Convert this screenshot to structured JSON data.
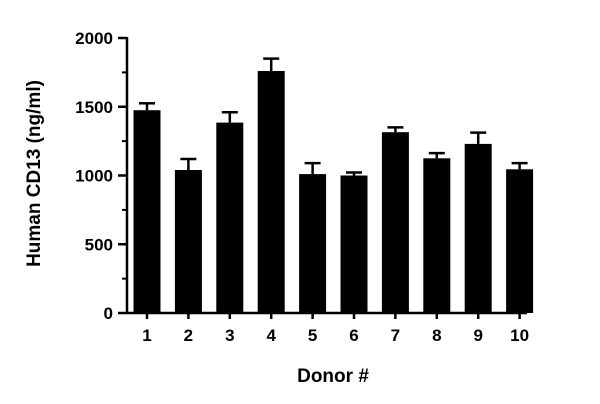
{
  "chart_data": {
    "type": "bar",
    "title": "",
    "xlabel": "Donor #",
    "ylabel": "Human CD13 (ng/ml)",
    "categories": [
      "1",
      "2",
      "3",
      "4",
      "5",
      "6",
      "7",
      "8",
      "9",
      "10"
    ],
    "values": [
      1475,
      1040,
      1385,
      1760,
      1010,
      1000,
      1315,
      1125,
      1230,
      1045
    ],
    "error": [
      50,
      80,
      75,
      90,
      80,
      22,
      35,
      38,
      82,
      45
    ],
    "ylim": [
      0,
      2000
    ],
    "yticks": [
      "0",
      "500",
      "1000",
      "1500",
      "2000"
    ],
    "ytick_values": [
      0,
      500,
      1000,
      1500,
      2000
    ],
    "grid": false,
    "bar_color": "#000000",
    "error_bars": "upper"
  }
}
